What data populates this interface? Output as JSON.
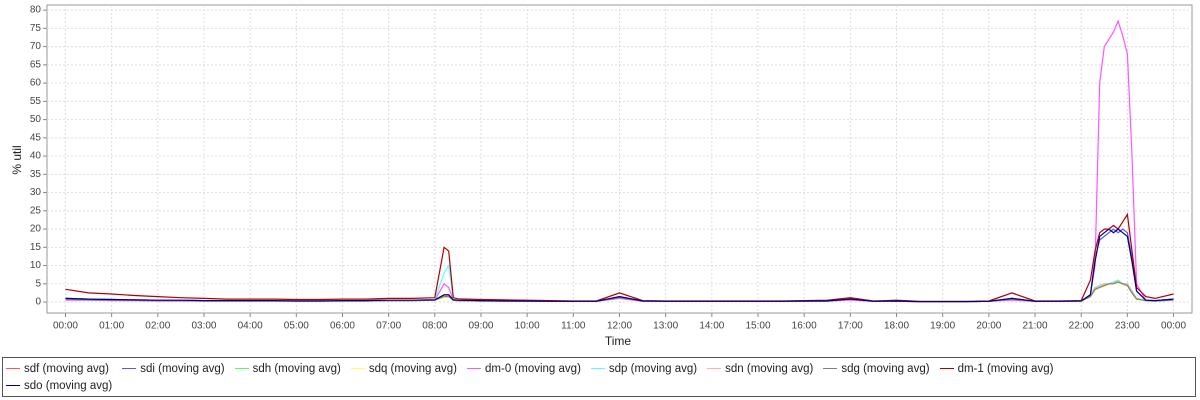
{
  "chart_data": {
    "type": "line",
    "y_label": "% util",
    "x_label": "Time",
    "xlim": [
      -0.4,
      24.4
    ],
    "ylim": [
      -3,
      81.4
    ],
    "grid": true,
    "yticks": [
      0,
      5,
      10,
      15,
      20,
      25,
      30,
      35,
      40,
      45,
      50,
      55,
      60,
      65,
      70,
      75,
      80
    ],
    "xticks": [
      {
        "value": 0,
        "label": "00:00"
      },
      {
        "value": 1,
        "label": "01:00"
      },
      {
        "value": 2,
        "label": "02:00"
      },
      {
        "value": 3,
        "label": "03:00"
      },
      {
        "value": 4,
        "label": "04:00"
      },
      {
        "value": 5,
        "label": "05:00"
      },
      {
        "value": 6,
        "label": "06:00"
      },
      {
        "value": 7,
        "label": "07:00"
      },
      {
        "value": 8,
        "label": "08:00"
      },
      {
        "value": 9,
        "label": "09:00"
      },
      {
        "value": 10,
        "label": "10:00"
      },
      {
        "value": 11,
        "label": "11:00"
      },
      {
        "value": 12,
        "label": "12:00"
      },
      {
        "value": 13,
        "label": "13:00"
      },
      {
        "value": 14,
        "label": "14:00"
      },
      {
        "value": 15,
        "label": "15:00"
      },
      {
        "value": 16,
        "label": "16:00"
      },
      {
        "value": 17,
        "label": "17:00"
      },
      {
        "value": 18,
        "label": "18:00"
      },
      {
        "value": 19,
        "label": "19:00"
      },
      {
        "value": 20,
        "label": "20:00"
      },
      {
        "value": 21,
        "label": "21:00"
      },
      {
        "value": 22,
        "label": "22:00"
      },
      {
        "value": 23,
        "label": "23:00"
      },
      {
        "value": 24,
        "label": "00:00"
      }
    ],
    "x": [
      0,
      0.5,
      1,
      1.5,
      2,
      2.5,
      3,
      3.5,
      4,
      4.5,
      5,
      5.5,
      6,
      6.5,
      7,
      7.5,
      8,
      8.2,
      8.3,
      8.4,
      8.5,
      9,
      9.5,
      10,
      10.5,
      11,
      11.5,
      12,
      12.5,
      13,
      13.5,
      14,
      14.5,
      15,
      15.5,
      16,
      16.5,
      17,
      17.5,
      18,
      18.5,
      19,
      19.5,
      20,
      20.5,
      21,
      21.5,
      22,
      22.2,
      22.3,
      22.4,
      22.5,
      22.6,
      22.7,
      22.8,
      22.9,
      23,
      23.1,
      23.2,
      23.4,
      23.6,
      24
    ],
    "series": [
      {
        "name": "sdf (moving avg)",
        "color": "#ff5555",
        "values": [
          1,
          0.8,
          0.7,
          0.6,
          0.5,
          0.5,
          0.4,
          0.4,
          0.4,
          0.4,
          0.3,
          0.3,
          0.4,
          0.4,
          0.5,
          0.5,
          0.6,
          2,
          2,
          0.6,
          0.5,
          0.4,
          0.3,
          0.3,
          0.2,
          0.2,
          0.2,
          1.5,
          0.3,
          0.2,
          0.2,
          0.2,
          0.2,
          0.2,
          0.2,
          0.3,
          0.3,
          0.8,
          0.2,
          0.3,
          0.1,
          0.1,
          0.1,
          0.2,
          1,
          0.2,
          0.2,
          0.3,
          2,
          4,
          4.5,
          5,
          5,
          5.5,
          6,
          5,
          5,
          3,
          1,
          0.5,
          0.4,
          0.8
        ]
      },
      {
        "name": "sdi (moving avg)",
        "color": "#5555ff",
        "values": [
          1,
          0.8,
          0.7,
          0.6,
          0.5,
          0.5,
          0.4,
          0.4,
          0.4,
          0.4,
          0.3,
          0.3,
          0.4,
          0.4,
          0.5,
          0.5,
          0.6,
          2,
          2,
          0.6,
          0.5,
          0.4,
          0.3,
          0.3,
          0.2,
          0.2,
          0.2,
          1.5,
          0.3,
          0.2,
          0.2,
          0.2,
          0.2,
          0.2,
          0.2,
          0.3,
          0.3,
          0.8,
          0.2,
          0.3,
          0.1,
          0.1,
          0.1,
          0.2,
          1,
          0.2,
          0.2,
          0.3,
          2,
          12,
          17,
          18,
          19,
          20,
          19,
          20,
          19,
          12,
          3,
          0.5,
          0.4,
          0.8
        ]
      },
      {
        "name": "sdh (moving avg)",
        "color": "#55ff55",
        "values": [
          0.8,
          0.6,
          0.5,
          0.5,
          0.4,
          0.4,
          0.3,
          0.3,
          0.3,
          0.3,
          0.3,
          0.3,
          0.3,
          0.3,
          0.4,
          0.4,
          0.5,
          1.5,
          1.5,
          0.5,
          0.4,
          0.3,
          0.3,
          0.2,
          0.2,
          0.2,
          0.2,
          1.2,
          0.3,
          0.2,
          0.2,
          0.2,
          0.2,
          0.2,
          0.2,
          0.2,
          0.3,
          1,
          0.2,
          0.2,
          0.1,
          0.1,
          0.1,
          0.2,
          0.8,
          0.2,
          0.2,
          0.3,
          1.5,
          3.5,
          4,
          4.5,
          5,
          5,
          5.5,
          5,
          4.5,
          2.5,
          0.8,
          0.4,
          0.3,
          0.6
        ]
      },
      {
        "name": "sdq (moving avg)",
        "color": "#ffff55",
        "values": [
          0.7,
          0.6,
          0.5,
          0.4,
          0.4,
          0.4,
          0.3,
          0.3,
          0.3,
          0.3,
          0.3,
          0.3,
          0.3,
          0.3,
          0.4,
          0.4,
          0.5,
          1.2,
          1.3,
          0.5,
          0.4,
          0.3,
          0.3,
          0.2,
          0.2,
          0.2,
          0.2,
          1,
          0.3,
          0.2,
          0.2,
          0.2,
          0.2,
          0.2,
          0.2,
          0.2,
          0.3,
          0.7,
          0.2,
          0.2,
          0.1,
          0.1,
          0.1,
          0.2,
          0.7,
          0.2,
          0.2,
          0.3,
          1.4,
          3.2,
          4,
          4.3,
          4.8,
          5,
          5.2,
          4.8,
          4.4,
          2.4,
          0.7,
          0.4,
          0.3,
          0.5
        ]
      },
      {
        "name": "dm-0 (moving avg)",
        "color": "#ff55ff",
        "values": [
          0.5,
          0.5,
          0.4,
          0.4,
          0.3,
          0.3,
          0.3,
          0.3,
          0.3,
          0.3,
          0.3,
          0.3,
          0.3,
          0.3,
          0.4,
          0.4,
          0.5,
          5,
          4,
          0.5,
          0.4,
          0.3,
          0.3,
          0.2,
          0.2,
          0.2,
          0.2,
          1,
          0.2,
          0.2,
          0.2,
          0.2,
          0.2,
          0.2,
          0.2,
          0.2,
          0.3,
          0.5,
          0.2,
          0.2,
          0.1,
          0.1,
          0.1,
          0.2,
          0.5,
          0.2,
          0.2,
          0.3,
          2,
          10,
          60,
          70,
          72,
          74,
          77,
          73,
          68,
          40,
          5,
          0.5,
          0.3,
          0.5
        ]
      },
      {
        "name": "sdp (moving avg)",
        "color": "#55ffff",
        "values": [
          1,
          0.8,
          0.7,
          0.6,
          0.5,
          0.5,
          0.4,
          0.4,
          0.4,
          0.4,
          0.3,
          0.3,
          0.4,
          0.4,
          0.5,
          0.5,
          0.6,
          8,
          10,
          0.6,
          0.5,
          0.4,
          0.3,
          0.3,
          0.2,
          0.2,
          0.2,
          1.5,
          0.3,
          0.2,
          0.2,
          0.2,
          0.2,
          0.2,
          0.2,
          0.3,
          0.3,
          0.8,
          0.2,
          0.3,
          0.1,
          0.1,
          0.1,
          0.2,
          1,
          0.2,
          0.2,
          0.3,
          2,
          4,
          4.5,
          5,
          5,
          5.5,
          6,
          5,
          5,
          3,
          1,
          0.5,
          0.4,
          0.8
        ]
      },
      {
        "name": "sdn (moving avg)",
        "color": "#ffafaf",
        "values": [
          0.9,
          0.7,
          0.6,
          0.6,
          0.5,
          0.5,
          0.4,
          0.4,
          0.4,
          0.4,
          0.3,
          0.3,
          0.4,
          0.4,
          0.5,
          0.5,
          0.6,
          1.8,
          1.8,
          0.6,
          0.5,
          0.4,
          0.3,
          0.3,
          0.2,
          0.2,
          0.2,
          1.3,
          0.3,
          0.2,
          0.2,
          0.2,
          0.2,
          0.2,
          0.2,
          0.3,
          0.3,
          0.7,
          0.2,
          0.3,
          0.1,
          0.1,
          0.1,
          0.2,
          0.9,
          0.2,
          0.2,
          0.3,
          1.8,
          3.8,
          4.3,
          4.8,
          5,
          5.2,
          5.6,
          5,
          4.8,
          2.8,
          0.9,
          0.5,
          0.4,
          0.7
        ]
      },
      {
        "name": "sdg (moving avg)",
        "color": "#808080",
        "values": [
          0.8,
          0.6,
          0.5,
          0.5,
          0.4,
          0.4,
          0.3,
          0.3,
          0.3,
          0.3,
          0.3,
          0.3,
          0.3,
          0.3,
          0.4,
          0.4,
          0.5,
          1.5,
          1.5,
          0.5,
          0.4,
          0.3,
          0.3,
          0.2,
          0.2,
          0.2,
          0.2,
          1.2,
          0.3,
          0.2,
          0.2,
          0.2,
          0.2,
          0.2,
          0.2,
          0.2,
          0.3,
          1,
          0.2,
          0.2,
          0.1,
          0.1,
          0.1,
          0.2,
          0.8,
          0.2,
          0.2,
          0.3,
          1.5,
          3.5,
          4,
          4.5,
          5,
          5,
          5.5,
          5,
          4.5,
          2.5,
          0.8,
          0.4,
          0.3,
          0.6
        ]
      },
      {
        "name": "dm-1 (moving avg)",
        "color": "#b00000",
        "values": [
          3.5,
          2.5,
          2.2,
          1.8,
          1.5,
          1.2,
          1,
          0.8,
          0.8,
          0.8,
          0.7,
          0.7,
          0.8,
          0.8,
          1,
          1,
          1.2,
          15,
          14,
          1.2,
          0.9,
          0.7,
          0.6,
          0.5,
          0.4,
          0.3,
          0.3,
          2.5,
          0.4,
          0.3,
          0.3,
          0.3,
          0.3,
          0.3,
          0.3,
          0.4,
          0.5,
          1.2,
          0.3,
          0.5,
          0.2,
          0.2,
          0.2,
          0.3,
          2.5,
          0.3,
          0.3,
          0.4,
          6,
          14,
          19,
          20,
          20,
          21,
          20,
          22,
          24,
          14,
          4,
          1.5,
          1,
          2.2
        ]
      },
      {
        "name": "sdo (moving avg)",
        "color": "#000080",
        "values": [
          1,
          0.8,
          0.7,
          0.6,
          0.5,
          0.5,
          0.4,
          0.4,
          0.4,
          0.4,
          0.3,
          0.3,
          0.4,
          0.4,
          0.5,
          0.5,
          0.6,
          2,
          2,
          0.6,
          0.5,
          0.4,
          0.3,
          0.3,
          0.2,
          0.2,
          0.2,
          1.5,
          0.3,
          0.2,
          0.2,
          0.2,
          0.2,
          0.2,
          0.2,
          0.3,
          0.3,
          0.8,
          0.2,
          0.3,
          0.1,
          0.1,
          0.1,
          0.2,
          1,
          0.2,
          0.2,
          0.3,
          2,
          11,
          18,
          19,
          20,
          19,
          20,
          19,
          18,
          11,
          3,
          0.5,
          0.4,
          0.8
        ]
      }
    ]
  }
}
